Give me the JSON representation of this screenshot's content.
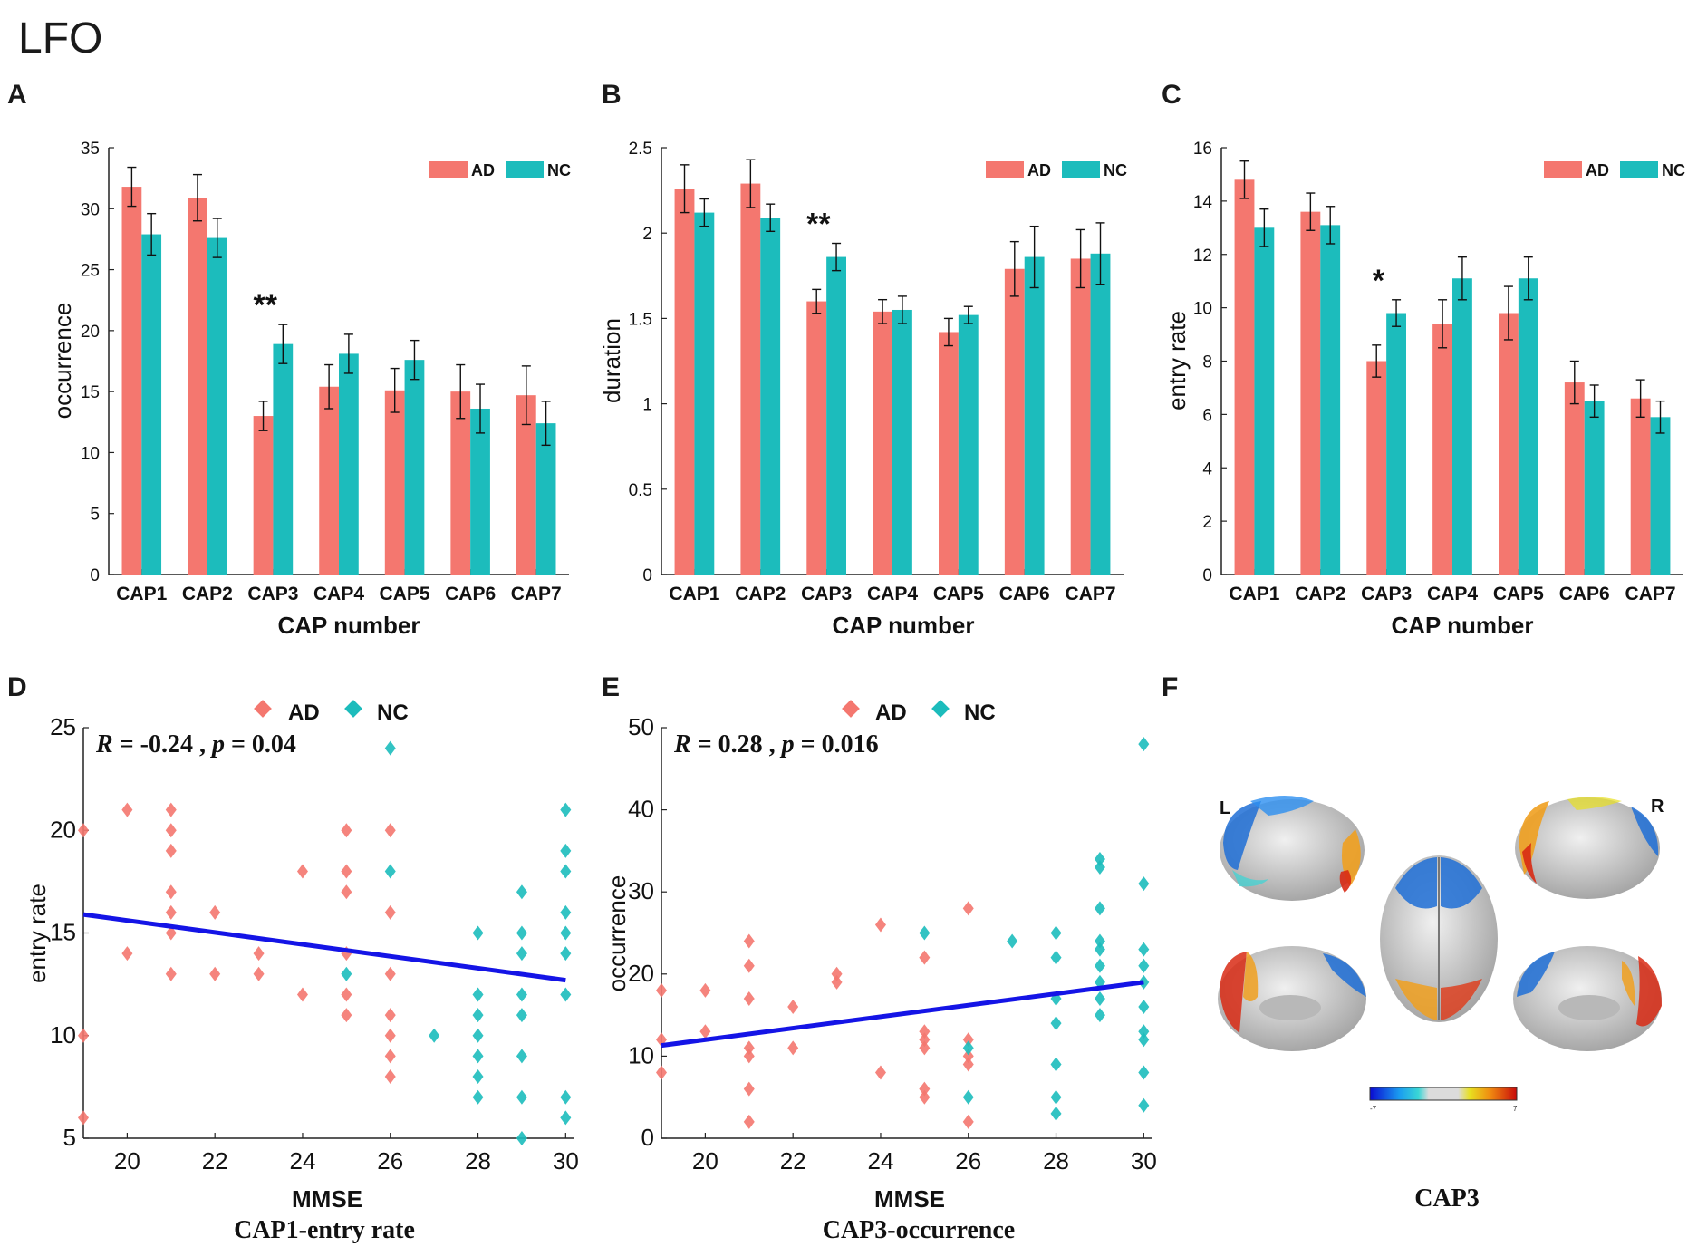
{
  "figure": {
    "main_title": "LFO",
    "colors": {
      "AD": "#f4776f",
      "NC": "#1cbcbc",
      "fit_line": "#1414e6",
      "axis": "#222222"
    },
    "brain_panel": {
      "label": "F",
      "left": "L",
      "right": "R",
      "caption": "CAP3",
      "cbar_min": "-7",
      "cbar_max": "7"
    }
  },
  "chart_data": [
    {
      "id": "A",
      "type": "bar",
      "xlabel": "CAP number",
      "ylabel": "occurrence",
      "categories": [
        "CAP1",
        "CAP2",
        "CAP3",
        "CAP4",
        "CAP5",
        "CAP6",
        "CAP7"
      ],
      "ylim": [
        0,
        35
      ],
      "yticks": [
        0,
        5,
        10,
        15,
        20,
        25,
        30,
        35
      ],
      "series": [
        {
          "name": "AD",
          "values": [
            31.8,
            30.9,
            13.0,
            15.4,
            15.1,
            15.0,
            14.7
          ],
          "errors": [
            1.6,
            1.9,
            1.2,
            1.8,
            1.8,
            2.2,
            2.4
          ]
        },
        {
          "name": "NC",
          "values": [
            27.9,
            27.6,
            18.9,
            18.1,
            17.6,
            13.6,
            12.4
          ],
          "errors": [
            1.7,
            1.6,
            1.6,
            1.6,
            1.6,
            2.0,
            1.8
          ]
        }
      ],
      "legend": [
        "AD",
        "NC"
      ],
      "annotations": [
        {
          "category": "CAP3",
          "text": "**"
        }
      ]
    },
    {
      "id": "B",
      "type": "bar",
      "xlabel": "CAP number",
      "ylabel": "duration",
      "categories": [
        "CAP1",
        "CAP2",
        "CAP3",
        "CAP4",
        "CAP5",
        "CAP6",
        "CAP7"
      ],
      "ylim": [
        0,
        2.5
      ],
      "yticks": [
        0,
        0.5,
        1,
        1.5,
        2,
        2.5
      ],
      "series": [
        {
          "name": "AD",
          "values": [
            2.26,
            2.29,
            1.6,
            1.54,
            1.42,
            1.79,
            1.85
          ],
          "errors": [
            0.14,
            0.14,
            0.07,
            0.07,
            0.08,
            0.16,
            0.17
          ]
        },
        {
          "name": "NC",
          "values": [
            2.12,
            2.09,
            1.86,
            1.55,
            1.52,
            1.86,
            1.88
          ],
          "errors": [
            0.08,
            0.08,
            0.08,
            0.08,
            0.05,
            0.18,
            0.18
          ]
        }
      ],
      "legend": [
        "AD",
        "NC"
      ],
      "annotations": [
        {
          "category": "CAP3",
          "text": "**"
        }
      ]
    },
    {
      "id": "C",
      "type": "bar",
      "xlabel": "CAP number",
      "ylabel": "entry rate",
      "categories": [
        "CAP1",
        "CAP2",
        "CAP3",
        "CAP4",
        "CAP5",
        "CAP6",
        "CAP7"
      ],
      "ylim": [
        0,
        16
      ],
      "yticks": [
        0,
        2,
        4,
        6,
        8,
        10,
        12,
        14,
        16
      ],
      "series": [
        {
          "name": "AD",
          "values": [
            14.8,
            13.6,
            8.0,
            9.4,
            9.8,
            7.2,
            6.6
          ],
          "errors": [
            0.7,
            0.7,
            0.6,
            0.9,
            1.0,
            0.8,
            0.7
          ]
        },
        {
          "name": "NC",
          "values": [
            13.0,
            13.1,
            9.8,
            11.1,
            11.1,
            6.5,
            5.9
          ],
          "errors": [
            0.7,
            0.7,
            0.5,
            0.8,
            0.8,
            0.6,
            0.6
          ]
        }
      ],
      "legend": [
        "AD",
        "NC"
      ],
      "annotations": [
        {
          "category": "CAP3",
          "text": "*"
        }
      ]
    },
    {
      "id": "D",
      "type": "scatter",
      "title": "CAP1-entry rate",
      "xlabel": "MMSE",
      "ylabel": "entry rate",
      "xlim": [
        19,
        30.2
      ],
      "ylim": [
        5,
        25
      ],
      "xticks": [
        20,
        22,
        24,
        26,
        28,
        30
      ],
      "yticks": [
        5,
        10,
        15,
        20,
        25
      ],
      "stat": {
        "r_label": "R",
        "r_value": " = -0.24 , ",
        "p_label": "p",
        "p_value": " = 0.04"
      },
      "fit": {
        "x": [
          19,
          30
        ],
        "y": [
          15.9,
          12.7
        ]
      },
      "legend": [
        "AD",
        "NC"
      ],
      "series": [
        {
          "name": "AD",
          "points": [
            [
              19,
              20
            ],
            [
              19,
              10
            ],
            [
              19,
              6
            ],
            [
              20,
              21
            ],
            [
              20,
              14
            ],
            [
              21,
              21
            ],
            [
              21,
              20
            ],
            [
              21,
              19
            ],
            [
              21,
              17
            ],
            [
              21,
              16
            ],
            [
              21,
              15
            ],
            [
              21,
              13
            ],
            [
              22,
              16
            ],
            [
              22,
              13
            ],
            [
              23,
              14
            ],
            [
              23,
              13
            ],
            [
              24,
              18
            ],
            [
              24,
              12
            ],
            [
              25,
              20
            ],
            [
              25,
              18
            ],
            [
              25,
              17
            ],
            [
              25,
              14
            ],
            [
              25,
              12
            ],
            [
              25,
              11
            ],
            [
              26,
              20
            ],
            [
              26,
              16
            ],
            [
              26,
              13
            ],
            [
              26,
              11
            ],
            [
              26,
              10
            ],
            [
              26,
              9
            ],
            [
              26,
              8
            ]
          ]
        },
        {
          "name": "NC",
          "points": [
            [
              25,
              13
            ],
            [
              26,
              24
            ],
            [
              26,
              18
            ],
            [
              27,
              10
            ],
            [
              28,
              15
            ],
            [
              28,
              12
            ],
            [
              28,
              11
            ],
            [
              28,
              10
            ],
            [
              28,
              9
            ],
            [
              28,
              8
            ],
            [
              28,
              7
            ],
            [
              29,
              17
            ],
            [
              29,
              15
            ],
            [
              29,
              14
            ],
            [
              29,
              12
            ],
            [
              29,
              11
            ],
            [
              29,
              9
            ],
            [
              29,
              7
            ],
            [
              29,
              5
            ],
            [
              30,
              21
            ],
            [
              30,
              19
            ],
            [
              30,
              18
            ],
            [
              30,
              16
            ],
            [
              30,
              15
            ],
            [
              30,
              14
            ],
            [
              30,
              12
            ],
            [
              30,
              7
            ],
            [
              30,
              6
            ]
          ]
        }
      ]
    },
    {
      "id": "E",
      "type": "scatter",
      "title": "CAP3-occurrence",
      "xlabel": "MMSE",
      "ylabel": "occurrence",
      "xlim": [
        19,
        30.2
      ],
      "ylim": [
        0,
        50
      ],
      "xticks": [
        20,
        22,
        24,
        26,
        28,
        30
      ],
      "yticks": [
        0,
        10,
        20,
        30,
        40,
        50
      ],
      "stat": {
        "r_label": "R",
        "r_value": " = 0.28 , ",
        "p_label": "p",
        "p_value": " = 0.016"
      },
      "fit": {
        "x": [
          19,
          30
        ],
        "y": [
          11.3,
          19.0
        ]
      },
      "legend": [
        "AD",
        "NC"
      ],
      "series": [
        {
          "name": "AD",
          "points": [
            [
              19,
              18
            ],
            [
              19,
              12
            ],
            [
              19,
              8
            ],
            [
              20,
              18
            ],
            [
              20,
              13
            ],
            [
              21,
              24
            ],
            [
              21,
              21
            ],
            [
              21,
              17
            ],
            [
              21,
              11
            ],
            [
              21,
              10
            ],
            [
              21,
              6
            ],
            [
              21,
              2
            ],
            [
              22,
              16
            ],
            [
              22,
              11
            ],
            [
              23,
              20
            ],
            [
              23,
              19
            ],
            [
              24,
              26
            ],
            [
              24,
              8
            ],
            [
              25,
              22
            ],
            [
              25,
              13
            ],
            [
              25,
              12
            ],
            [
              25,
              11
            ],
            [
              25,
              6
            ],
            [
              25,
              5
            ],
            [
              26,
              28
            ],
            [
              26,
              12
            ],
            [
              26,
              10
            ],
            [
              26,
              9
            ],
            [
              26,
              2
            ]
          ]
        },
        {
          "name": "NC",
          "points": [
            [
              25,
              25
            ],
            [
              26,
              11
            ],
            [
              26,
              5
            ],
            [
              27,
              24
            ],
            [
              28,
              25
            ],
            [
              28,
              22
            ],
            [
              28,
              17
            ],
            [
              28,
              14
            ],
            [
              28,
              9
            ],
            [
              28,
              5
            ],
            [
              28,
              3
            ],
            [
              29,
              34
            ],
            [
              29,
              33
            ],
            [
              29,
              28
            ],
            [
              29,
              24
            ],
            [
              29,
              23
            ],
            [
              29,
              21
            ],
            [
              29,
              19
            ],
            [
              29,
              17
            ],
            [
              29,
              15
            ],
            [
              30,
              48
            ],
            [
              30,
              31
            ],
            [
              30,
              23
            ],
            [
              30,
              21
            ],
            [
              30,
              19
            ],
            [
              30,
              16
            ],
            [
              30,
              13
            ],
            [
              30,
              12
            ],
            [
              30,
              8
            ],
            [
              30,
              4
            ]
          ]
        }
      ]
    }
  ]
}
